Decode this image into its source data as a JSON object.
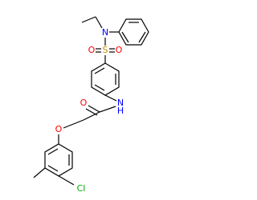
{
  "atoms": [
    {
      "label": "N"
    },
    {
      "label": "S"
    },
    {
      "label": "O"
    },
    {
      "label": "O"
    },
    {
      "label": "N"
    },
    {
      "label": "H"
    },
    {
      "label": "O"
    },
    {
      "label": "O"
    },
    {
      "label": "Cl"
    }
  ]
}
